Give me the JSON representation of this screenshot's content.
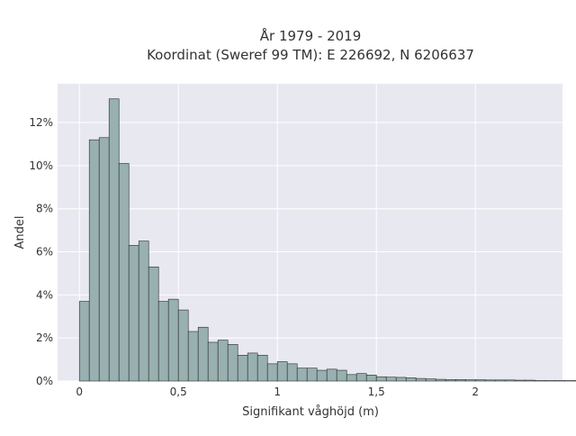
{
  "chart_data": {
    "type": "bar",
    "title_lines": [
      "År 1979 - 2019",
      "Koordinat (Sweref 99 TM): E 226692, N 6206637"
    ],
    "xlabel": "Signifikant våghöjd (m)",
    "ylabel": "Andel",
    "xlim": [
      -0.11,
      2.44
    ],
    "ylim": [
      0,
      13.8
    ],
    "x_ticks": [
      {
        "value": 0,
        "label": "0"
      },
      {
        "value": 0.5,
        "label": "0,5"
      },
      {
        "value": 1,
        "label": "1"
      },
      {
        "value": 1.5,
        "label": "1,5"
      },
      {
        "value": 2,
        "label": "2"
      }
    ],
    "y_ticks": [
      {
        "value": 0,
        "label": "0%"
      },
      {
        "value": 2,
        "label": "2%"
      },
      {
        "value": 4,
        "label": "4%"
      },
      {
        "value": 6,
        "label": "6%"
      },
      {
        "value": 8,
        "label": "8%"
      },
      {
        "value": 10,
        "label": "10%"
      },
      {
        "value": 12,
        "label": "12%"
      }
    ],
    "bin_start": 0,
    "bin_width": 0.05,
    "values": [
      3.7,
      11.2,
      11.3,
      13.1,
      10.1,
      6.3,
      6.5,
      5.3,
      3.7,
      3.8,
      3.3,
      2.3,
      2.5,
      1.8,
      1.9,
      1.7,
      1.2,
      1.3,
      1.2,
      0.8,
      0.9,
      0.8,
      0.6,
      0.6,
      0.5,
      0.55,
      0.5,
      0.3,
      0.35,
      0.28,
      0.2,
      0.18,
      0.17,
      0.15,
      0.12,
      0.1,
      0.08,
      0.07,
      0.07,
      0.06,
      0.06,
      0.05,
      0.05,
      0.05,
      0.04,
      0.04,
      0.02,
      0.02,
      0.02,
      0.02,
      0.02,
      0.02
    ],
    "bar_color": "#98b0b0",
    "bar_edge_color": "#2a2a2a",
    "plot_background": "#e8e8f0",
    "grid_color": "#ffffff",
    "grid": true
  }
}
